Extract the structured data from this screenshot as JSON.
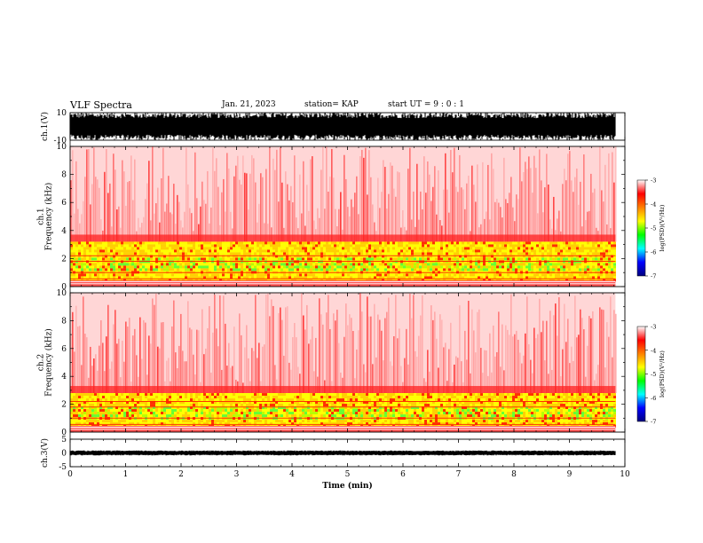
{
  "header": {
    "title": "VLF Spectra",
    "date": "Jan. 21, 2023",
    "station": "station= KAP",
    "start": "start  UT =   9 : 0  : 1"
  },
  "chart_data": [
    {
      "type": "line",
      "name": "ch1-waveform",
      "ylabel": "ch.1(V)",
      "ylim": [
        -10,
        10
      ],
      "yticks": [
        "10",
        "-10"
      ],
      "xlim": [
        0,
        10
      ],
      "data_end_min": 9.83,
      "color": "#000000",
      "envelope_V": [
        -8,
        8
      ]
    },
    {
      "type": "heatmap",
      "name": "ch1-spectrogram",
      "ylabel": "ch.1\nFrequency (kHz)",
      "ylim": [
        0,
        10
      ],
      "yticks": [
        "0",
        "2",
        "4",
        "6",
        "8",
        "10"
      ],
      "xlim": [
        0,
        10
      ],
      "data_end_min": 9.83,
      "band_top_kHz": 3.2,
      "colorbar": {
        "label": "log(PSD)(V²/Hz)",
        "range": [
          -7,
          -3
        ],
        "ticks": [
          "-3",
          "-4",
          "-5",
          "-6",
          "-7"
        ],
        "colors": [
          "#000080",
          "#0000ff",
          "#00ffff",
          "#00ff00",
          "#ffff00",
          "#ff8000",
          "#ff0000",
          "#ffffff"
        ]
      }
    },
    {
      "type": "heatmap",
      "name": "ch2-spectrogram",
      "ylabel": "ch.2\nFrequency (kHz)",
      "ylim": [
        0,
        10
      ],
      "yticks": [
        "0",
        "2",
        "4",
        "6",
        "8",
        "10"
      ],
      "xlim": [
        0,
        10
      ],
      "data_end_min": 9.83,
      "band_top_kHz": 2.8,
      "colorbar": {
        "label": "log(PSD)(V²/Hz)",
        "range": [
          -7,
          -3
        ],
        "ticks": [
          "-3",
          "-4",
          "-5",
          "-6",
          "-7"
        ],
        "colors": [
          "#000080",
          "#0000ff",
          "#00ffff",
          "#00ff00",
          "#ffff00",
          "#ff8000",
          "#ff0000",
          "#ffffff"
        ]
      }
    },
    {
      "type": "line",
      "name": "ch3-waveform",
      "ylabel": "ch.3(V)",
      "ylim": [
        -5,
        5
      ],
      "yticks": [
        "5",
        "0",
        "-5"
      ],
      "xlim": [
        0,
        10
      ],
      "data_end_min": 9.83,
      "color": "#000000",
      "envelope_V": [
        -0.6,
        0.6
      ],
      "xlabel": "Time (min)",
      "xticks": [
        "0",
        "1",
        "2",
        "3",
        "4",
        "5",
        "6",
        "7",
        "8",
        "9",
        "10"
      ]
    }
  ]
}
